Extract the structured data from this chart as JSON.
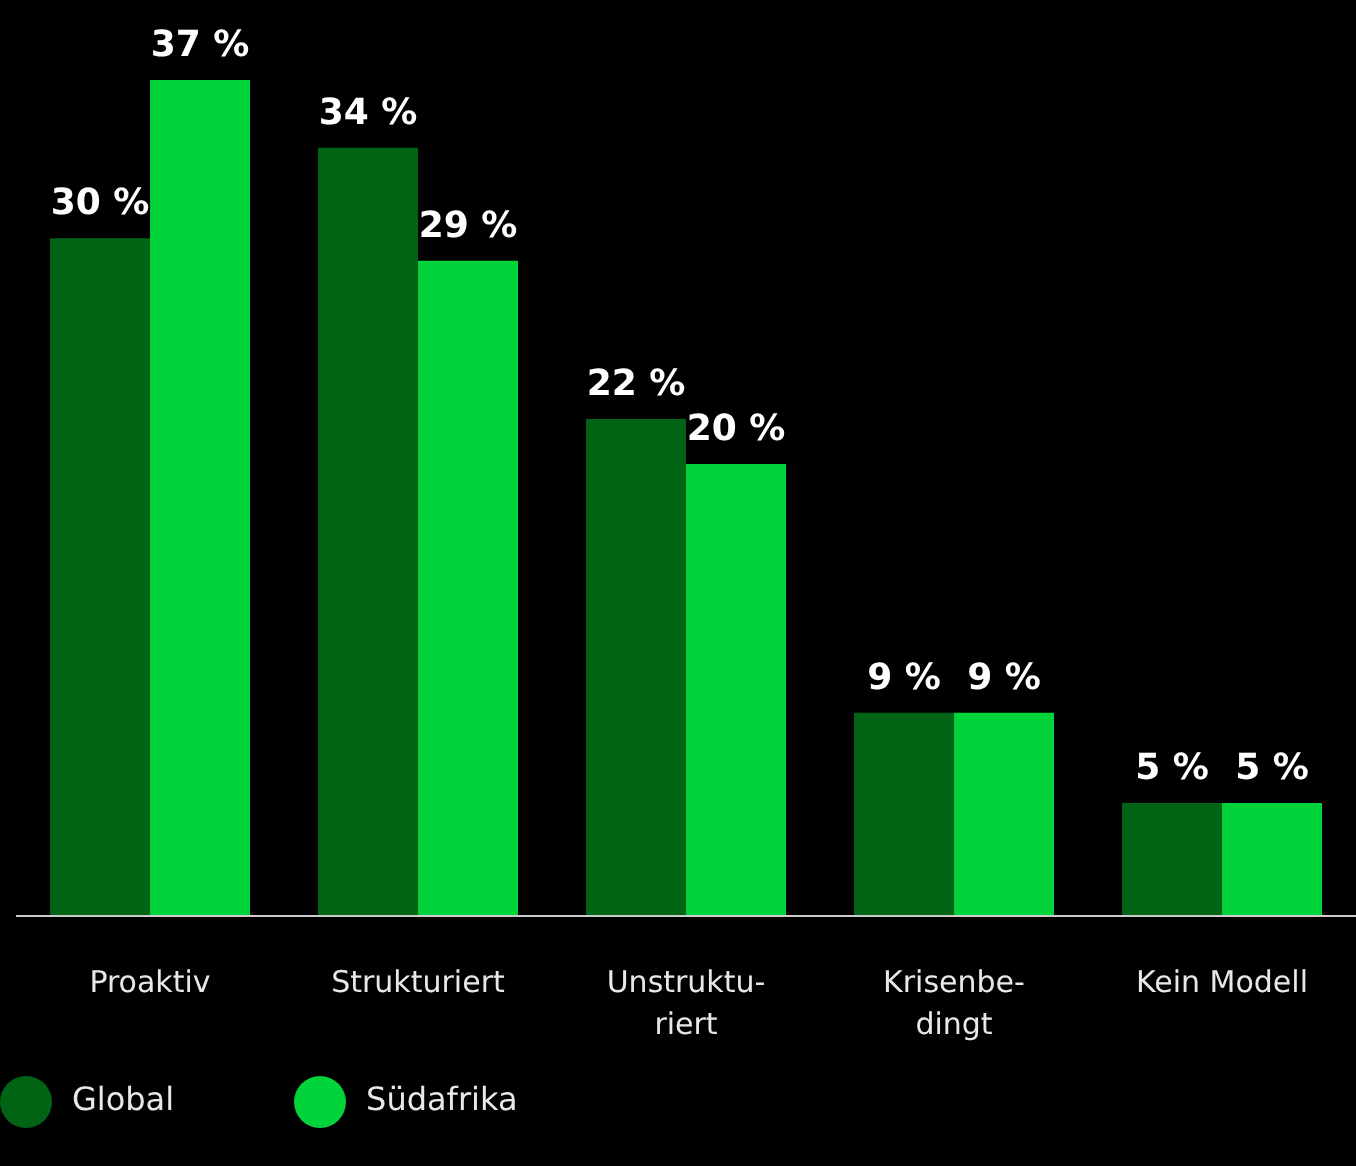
{
  "chart_data": {
    "type": "bar",
    "categories": [
      "Proaktiv",
      "Strukturiert",
      "Unstruktu-\nriert",
      "Krisenbe-\ndingt",
      "Kein Modell"
    ],
    "series": [
      {
        "name": "Global",
        "color": "#006414",
        "values": [
          30,
          34,
          22,
          9,
          5
        ],
        "value_labels": [
          "30 %",
          "34 %",
          "22 %",
          "9 %",
          "5 %"
        ]
      },
      {
        "name": "Südafrika",
        "color": "#00d43a",
        "values": [
          37,
          29,
          20,
          9,
          5
        ],
        "value_labels": [
          "37 %",
          "29 %",
          "20 %",
          "9 %",
          "5 %"
        ]
      }
    ],
    "legend": "bottom left",
    "grid": false
  }
}
